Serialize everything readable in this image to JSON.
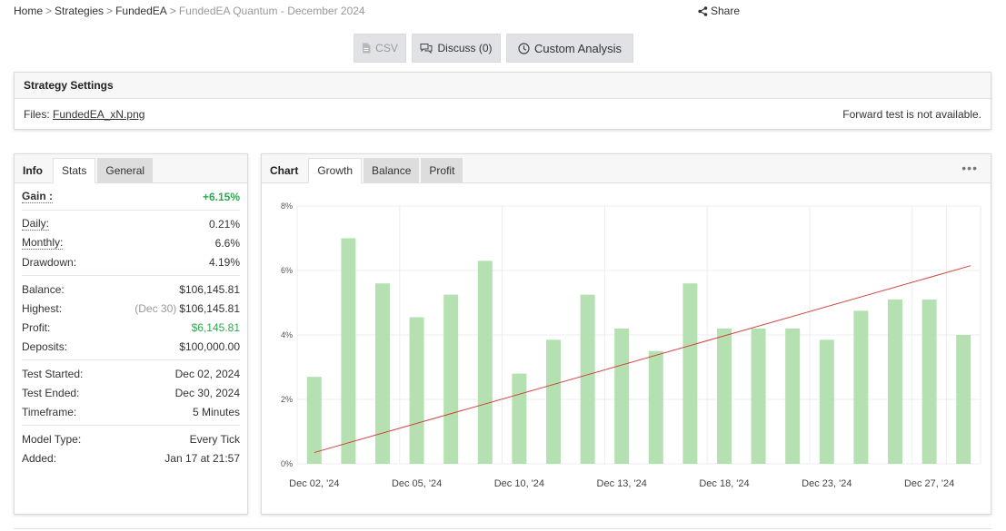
{
  "breadcrumb": {
    "home": "Home",
    "strategies": "Strategies",
    "fundedea": "FundedEA",
    "current": "FundedEA Quantum - December 2024",
    "sep": ">"
  },
  "share_label": "Share",
  "toolbar": {
    "csv_label": "CSV",
    "discuss_label": "Discuss (0)",
    "custom_label": "Custom Analysis"
  },
  "settings": {
    "title": "Strategy Settings",
    "files_label": "Files:",
    "file_name": "FundedEA_xN.png",
    "forward_test": "Forward test is not available."
  },
  "left_tabs": {
    "title": "Info",
    "stats": "Stats",
    "general": "General"
  },
  "stats": {
    "gain_label": "Gain :",
    "gain_value": "+6.15%",
    "daily_label": "Daily:",
    "daily_value": "0.21%",
    "monthly_label": "Monthly:",
    "monthly_value": "6.6%",
    "drawdown_label": "Drawdown:",
    "drawdown_value": "4.19%",
    "balance_label": "Balance:",
    "balance_value": "$106,145.81",
    "highest_label": "Highest:",
    "highest_date": "(Dec 30)",
    "highest_value": "$106,145.81",
    "profit_label": "Profit:",
    "profit_value": "$6,145.81",
    "deposits_label": "Deposits:",
    "deposits_value": "$100,000.00",
    "test_started_label": "Test Started:",
    "test_started_value": "Dec 02, 2024",
    "test_ended_label": "Test Ended:",
    "test_ended_value": "Dec 30, 2024",
    "timeframe_label": "Timeframe:",
    "timeframe_value": "5 Minutes",
    "model_type_label": "Model Type:",
    "model_type_value": "Every Tick",
    "added_label": "Added:",
    "added_value": "Jan 17 at 21:57"
  },
  "chart_tabs": {
    "title": "Chart",
    "growth": "Growth",
    "balance": "Balance",
    "profit": "Profit"
  },
  "more_icon": "more-dots-icon",
  "colors": {
    "bar": "#b5e1b2",
    "line": "#d0443c",
    "green_text": "#2fa84f"
  },
  "chart_data": {
    "type": "bar",
    "title": "",
    "xlabel": "",
    "ylabel": "",
    "ylim": [
      0,
      8
    ],
    "y_ticks": [
      "0%",
      "2%",
      "4%",
      "6%",
      "8%"
    ],
    "x_tick_labels": [
      "Dec 02, '24",
      "Dec 05, '24",
      "Dec 10, '24",
      "Dec 13, '24",
      "Dec 18, '24",
      "Dec 23, '24",
      "Dec 27, '24"
    ],
    "x_tick_bar_index": [
      0,
      3,
      6,
      9,
      12,
      15,
      18
    ],
    "values": [
      2.7,
      7.0,
      5.6,
      4.55,
      5.25,
      6.3,
      2.8,
      3.85,
      5.25,
      4.2,
      3.5,
      5.6,
      4.2,
      4.2,
      4.2,
      3.85,
      4.75,
      5.1,
      5.1,
      4.0
    ],
    "trend_line": {
      "start": 0.35,
      "end": 6.15
    },
    "grid": true
  }
}
